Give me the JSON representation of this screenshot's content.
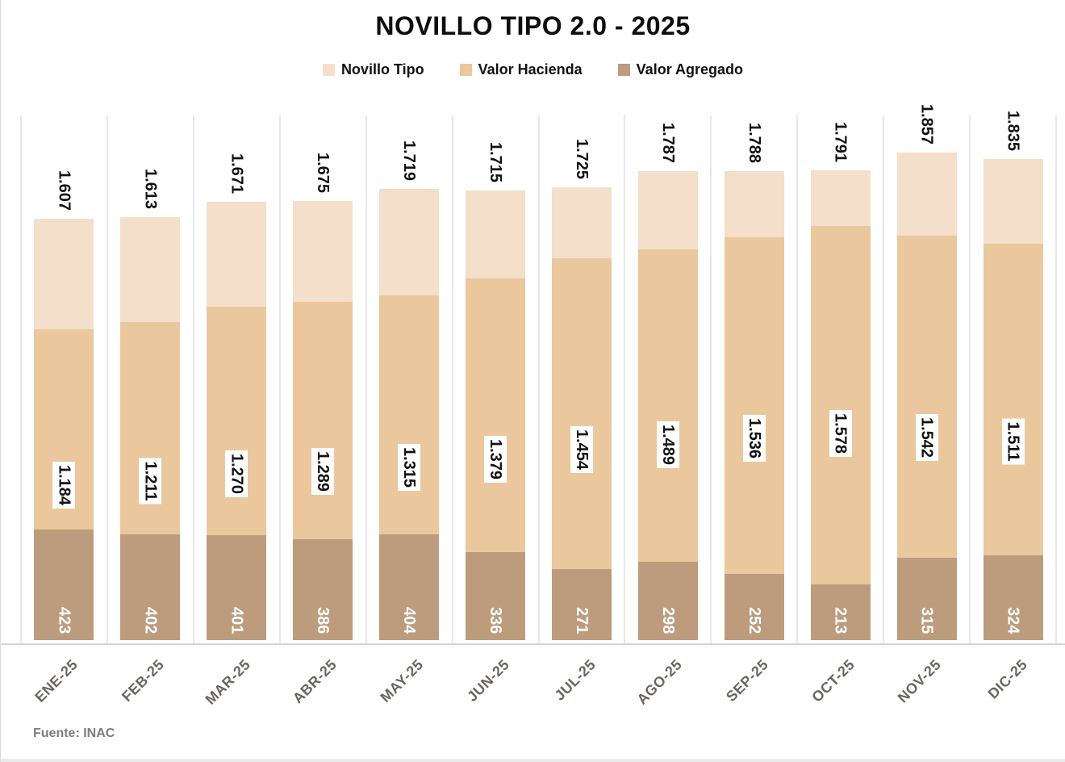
{
  "title": "NOVILLO TIPO 2.0 - 2025",
  "source": "Fuente: INAC",
  "legend": {
    "items": [
      {
        "label": "Novillo Tipo",
        "color": "#f3dfca"
      },
      {
        "label": "Valor Hacienda",
        "color": "#ebc79e"
      },
      {
        "label": "Valor Agregado",
        "color": "#bc9c7d"
      }
    ]
  },
  "colors": {
    "novillo_tipo": "#f3dfca",
    "valor_hacienda": "#ebc79e",
    "valor_agregado": "#bc9c7d",
    "gridline": "#e8e8e8",
    "axis_line": "#d6d6d6",
    "label_text": "#111111",
    "bottom_label_text": "#ffffff",
    "x_label_text": "#6b6560",
    "source_text": "#7d7d7d"
  },
  "chart_data": {
    "type": "bar",
    "subtype": "stacked-cumulative",
    "title": "NOVILLO TIPO 2.0 - 2025",
    "xlabel": "",
    "ylabel": "",
    "ylim": [
      0,
      2000
    ],
    "grid": "vertical-category-separators",
    "legend_position": "top",
    "categories": [
      "ENE-25",
      "FEB-25",
      "MAR-25",
      "ABR-25",
      "MAY-25",
      "JUN-25",
      "JUL-25",
      "AGO-25",
      "SEP-25",
      "OCT-25",
      "NOV-25",
      "DIC-25"
    ],
    "series": [
      {
        "name": "Novillo Tipo",
        "color": "#f3dfca",
        "values": [
          1607,
          1613,
          1671,
          1675,
          1719,
          1715,
          1725,
          1787,
          1788,
          1791,
          1857,
          1835
        ],
        "labels": [
          "1.607",
          "1.613",
          "1.671",
          "1.675",
          "1.719",
          "1.715",
          "1.725",
          "1.787",
          "1.788",
          "1.791",
          "1.857",
          "1.835"
        ],
        "label_style": "rotated-above-bar"
      },
      {
        "name": "Valor Hacienda",
        "color": "#ebc79e",
        "values": [
          1184,
          1211,
          1270,
          1289,
          1315,
          1379,
          1454,
          1489,
          1536,
          1578,
          1542,
          1511
        ],
        "labels": [
          "1.184",
          "1.211",
          "1.270",
          "1.289",
          "1.315",
          "1.379",
          "1.454",
          "1.489",
          "1.536",
          "1.578",
          "1.542",
          "1.511"
        ],
        "label_style": "rotated-white-box-inside"
      },
      {
        "name": "Valor Agregado",
        "color": "#bc9c7d",
        "values": [
          423,
          402,
          401,
          386,
          404,
          336,
          271,
          298,
          252,
          213,
          315,
          324
        ],
        "labels": [
          "423",
          "402",
          "401",
          "386",
          "404",
          "336",
          "271",
          "298",
          "252",
          "213",
          "315",
          "324"
        ],
        "label_style": "rotated-white-text-inside-base"
      }
    ]
  }
}
